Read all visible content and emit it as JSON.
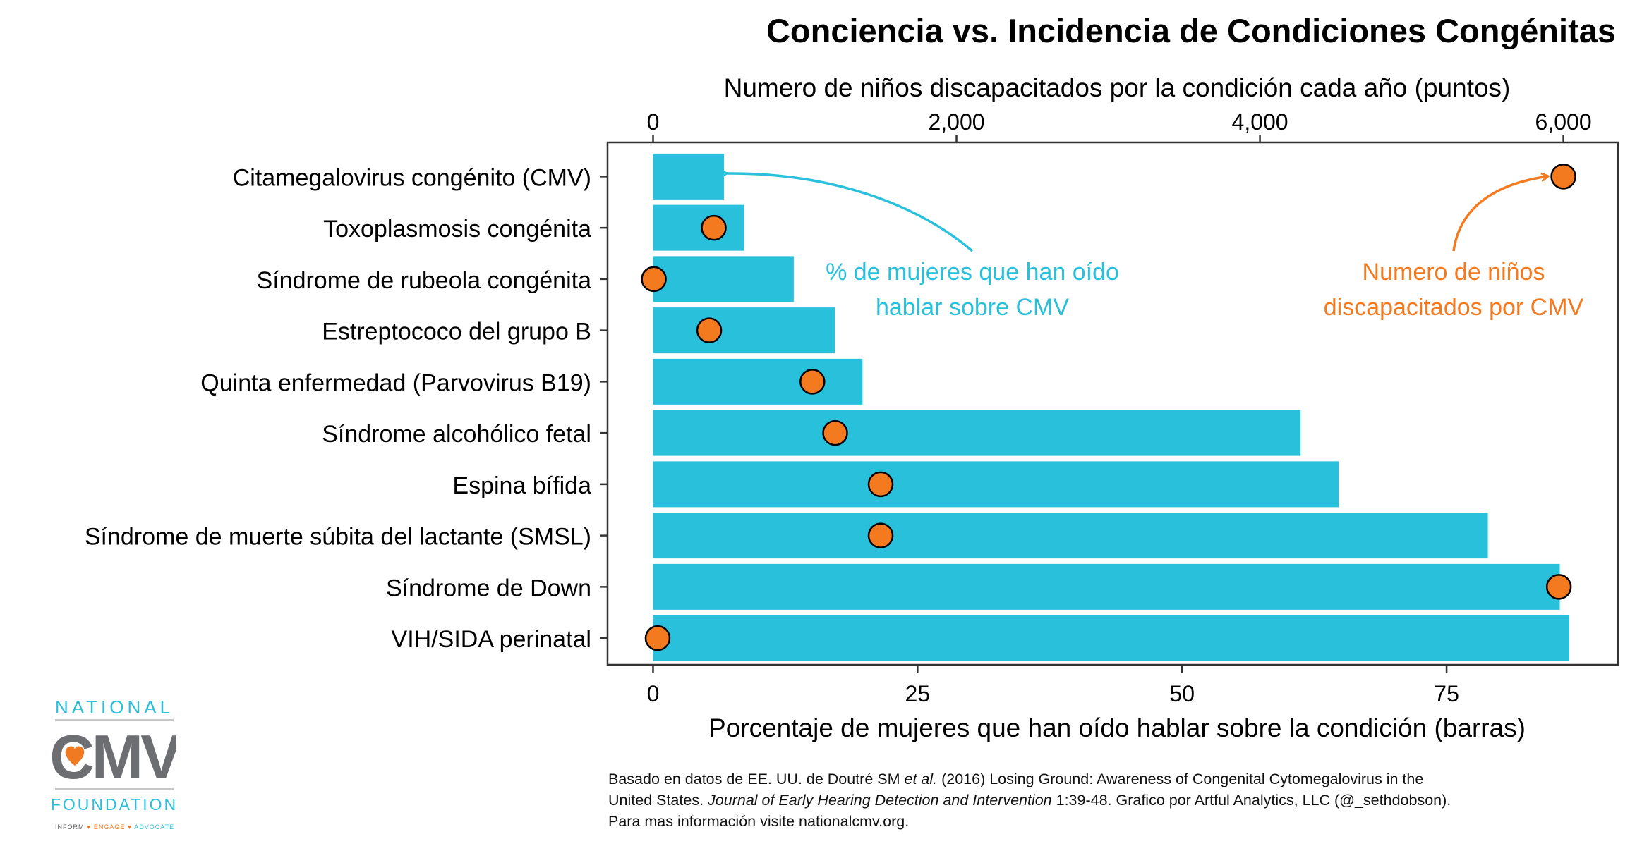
{
  "chart_data": {
    "type": "bar",
    "title": "Conciencia vs. Incidencia de Condiciones Congénitas",
    "orientation": "horizontal",
    "categories": [
      "Citamegalovirus congénito (CMV)",
      "Toxoplasmosis congénita",
      "Síndrome de rubeola congénita",
      "Estreptococo del grupo B",
      "Quinta enfermedad (Parvovirus B19)",
      "Síndrome alcohólico fetal",
      "Espina bífida",
      "Síndrome de muerte súbita del lactante (SMSL)",
      "Síndrome de Down",
      "VIH/SIDA perinatal"
    ],
    "series": [
      {
        "name": "Porcentaje de mujeres que han oído hablar sobre la condición (barras)",
        "type": "bar",
        "axis": "bottom",
        "color": "#29c0dc",
        "values": [
          6.7,
          8.6,
          13.3,
          17.2,
          19.8,
          61.2,
          64.8,
          78.9,
          85.7,
          86.6
        ]
      },
      {
        "name": "Numero de niños discapacitados por la condición cada año (puntos)",
        "type": "scatter",
        "axis": "top",
        "color": "#f47a20",
        "values": [
          6000,
          400,
          5,
          370,
          1050,
          1200,
          1500,
          1500,
          5970,
          30
        ]
      }
    ],
    "x_bottom": {
      "label": "Porcentaje de mujeres que han oído hablar sobre la condición (barras)",
      "range": [
        -4.3,
        91.2
      ],
      "ticks": [
        0,
        25,
        50,
        75
      ],
      "tick_labels": [
        "0",
        "25",
        "50",
        "75"
      ]
    },
    "x_top": {
      "label": "Numero de niños discapacitados por la condición cada año (puntos)",
      "range": [
        -300,
        6360
      ],
      "ticks": [
        0,
        2000,
        4000,
        6000
      ],
      "tick_labels": [
        "0",
        "2,000",
        "4,000",
        "6,000"
      ]
    },
    "grid": false,
    "legend": "none",
    "annotations": [
      {
        "id": "awareness",
        "lines": [
          "% de mujeres que han oído",
          "hablar sobre CMV"
        ],
        "color": "#29c0dc"
      },
      {
        "id": "count",
        "lines": [
          "Numero de niños",
          "discapacitados por CMV"
        ],
        "color": "#f47a20"
      }
    ]
  },
  "caption": {
    "line1": "Basado en datos de EE. UU. de Doutré SM ",
    "line1_italic": "et al.",
    "line1_end": " (2016) Losing Ground: Awareness of Congenital Cytomegalovirus in the",
    "line2_start": "United States. ",
    "line2_italic": "Journal of Early Hearing Detection and Intervention",
    "line2_end": " 1:39-48. Grafico por Artful Analytics, LLC (@_sethdobson).",
    "line3": "Para mas información visite nationalcmv.org."
  },
  "logo": {
    "top": "NATIONAL",
    "main": "CMV",
    "bottom": "FOUNDATION",
    "tag_inform": "INFORM",
    "tag_engage": "ENGAGE",
    "tag_advocate": "ADVOCATE",
    "colors": {
      "cyan": "#2bbfdc",
      "gray": "#6d6e71",
      "orange": "#f07a22"
    }
  }
}
